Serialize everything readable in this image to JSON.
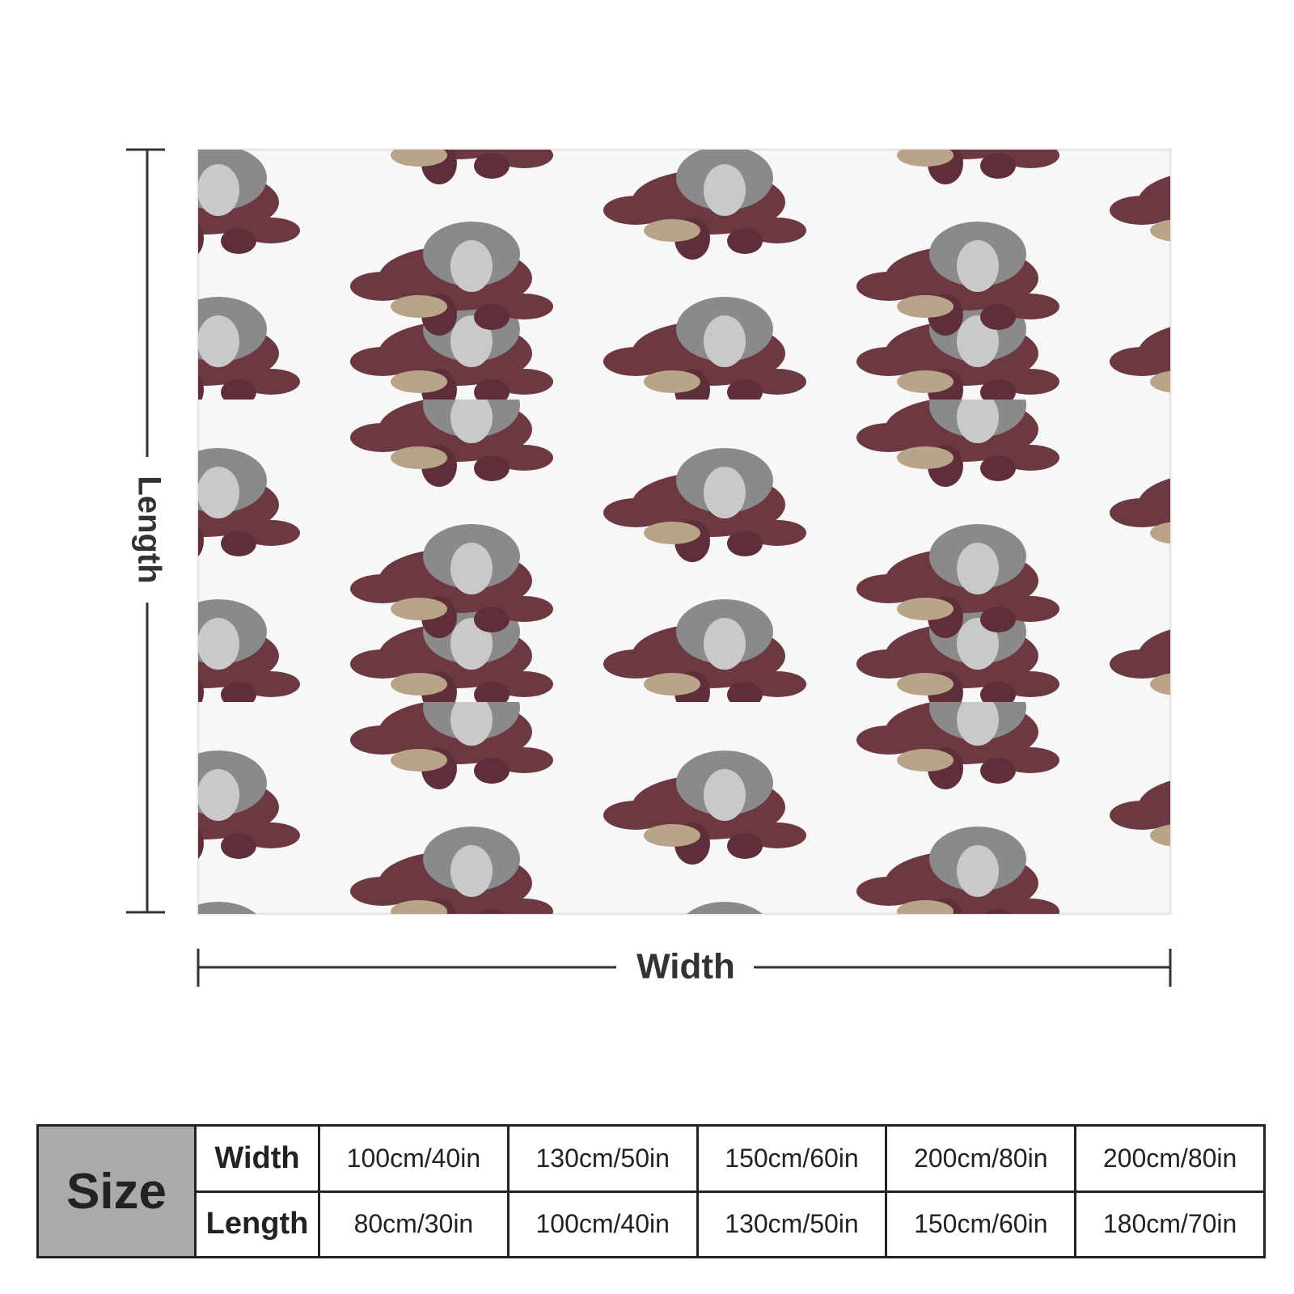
{
  "dimensions": {
    "length": "Length",
    "width": "Width"
  },
  "table": {
    "header": "Size",
    "rows": [
      [
        "Width",
        "100cm/40in",
        "130cm/50in",
        "150cm/60in",
        "200cm/80in",
        "200cm/80in"
      ],
      [
        "Length",
        "80cm/30in",
        "100cm/40in",
        "130cm/50in",
        "150cm/60in",
        "180cm/70in"
      ]
    ]
  }
}
